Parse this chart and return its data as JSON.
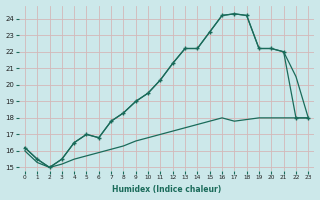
{
  "xlabel": "Humidex (Indice chaleur)",
  "background_color": "#cce8ea",
  "grid_color": "#d4b8b8",
  "line_color": "#1a6b5a",
  "xlim": [
    -0.5,
    23.5
  ],
  "ylim": [
    14.8,
    24.8
  ],
  "yticks": [
    15,
    16,
    17,
    18,
    19,
    20,
    21,
    22,
    23,
    24
  ],
  "xticks": [
    0,
    1,
    2,
    3,
    4,
    5,
    6,
    7,
    8,
    9,
    10,
    11,
    12,
    13,
    14,
    15,
    16,
    17,
    18,
    19,
    20,
    21,
    22,
    23
  ],
  "series_marked": {
    "x": [
      0,
      1,
      2,
      3,
      4,
      5,
      6,
      7,
      8,
      9,
      10,
      11,
      12,
      13,
      14,
      15,
      16,
      17,
      18,
      19,
      20,
      21,
      22,
      23
    ],
    "y": [
      16.2,
      15.5,
      15.0,
      15.5,
      16.5,
      17.0,
      16.8,
      17.8,
      18.3,
      19.0,
      19.5,
      20.3,
      21.3,
      22.2,
      22.2,
      23.2,
      24.2,
      24.3,
      24.2,
      22.2,
      22.2,
      22.0,
      18.0,
      18.0
    ]
  },
  "series_upper": {
    "x": [
      0,
      1,
      2,
      3,
      4,
      5,
      6,
      7,
      8,
      9,
      10,
      11,
      12,
      13,
      14,
      15,
      16,
      17,
      18,
      19,
      20,
      21,
      22,
      23
    ],
    "y": [
      16.2,
      15.5,
      15.0,
      15.5,
      16.5,
      17.0,
      16.8,
      17.8,
      18.3,
      19.0,
      19.5,
      20.3,
      21.3,
      22.2,
      22.2,
      23.2,
      24.2,
      24.3,
      24.2,
      22.2,
      22.2,
      22.0,
      20.5,
      18.0
    ]
  },
  "series_lower": {
    "x": [
      0,
      1,
      2,
      3,
      4,
      5,
      6,
      7,
      8,
      9,
      10,
      11,
      12,
      13,
      14,
      15,
      16,
      17,
      18,
      19,
      20,
      21,
      22,
      23
    ],
    "y": [
      16.0,
      15.3,
      15.0,
      15.2,
      15.5,
      15.7,
      15.9,
      16.1,
      16.3,
      16.6,
      16.8,
      17.0,
      17.2,
      17.4,
      17.6,
      17.8,
      18.0,
      17.8,
      17.9,
      18.0,
      18.0,
      18.0,
      18.0,
      18.0
    ]
  }
}
